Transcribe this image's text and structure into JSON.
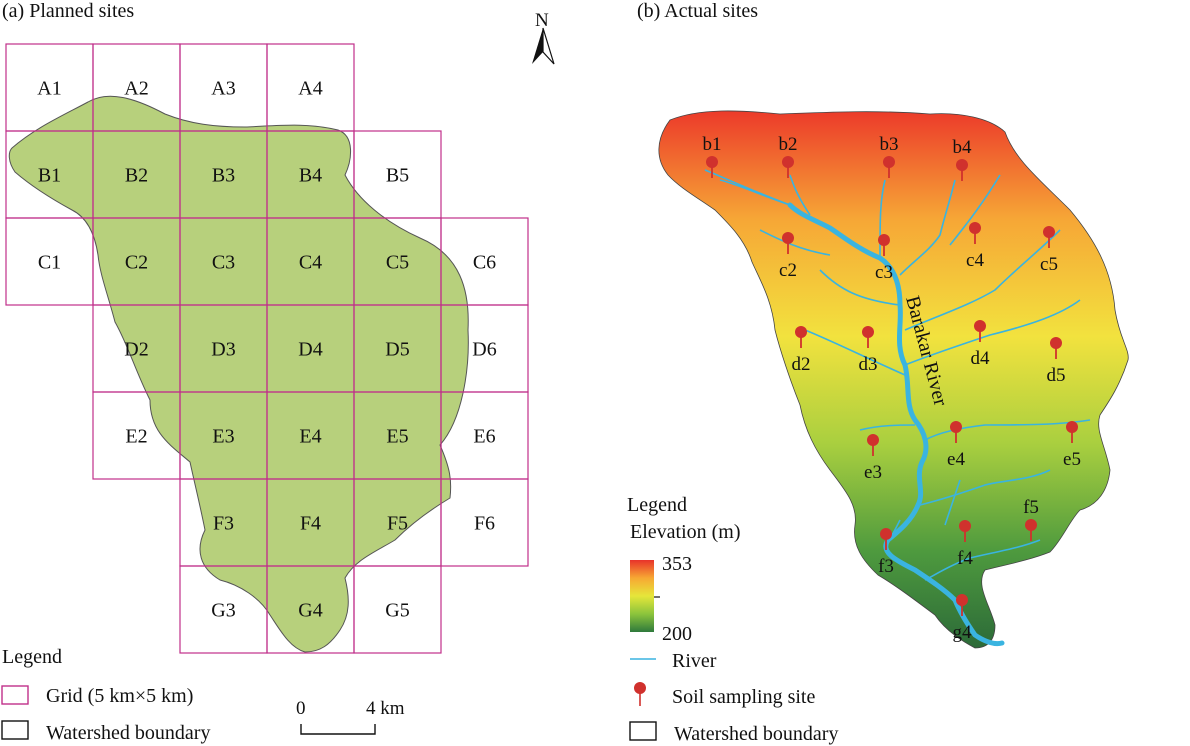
{
  "panel_a": {
    "title": "(a) Planned sites",
    "grid_cells": [
      {
        "label": "A1",
        "row": 0,
        "col": 0
      },
      {
        "label": "A2",
        "row": 0,
        "col": 1
      },
      {
        "label": "A3",
        "row": 0,
        "col": 2
      },
      {
        "label": "A4",
        "row": 0,
        "col": 3
      },
      {
        "label": "B1",
        "row": 1,
        "col": 0
      },
      {
        "label": "B2",
        "row": 1,
        "col": 1
      },
      {
        "label": "B3",
        "row": 1,
        "col": 2
      },
      {
        "label": "B4",
        "row": 1,
        "col": 3
      },
      {
        "label": "B5",
        "row": 1,
        "col": 4
      },
      {
        "label": "C1",
        "row": 2,
        "col": 0
      },
      {
        "label": "C2",
        "row": 2,
        "col": 1
      },
      {
        "label": "C3",
        "row": 2,
        "col": 2
      },
      {
        "label": "C4",
        "row": 2,
        "col": 3
      },
      {
        "label": "C5",
        "row": 2,
        "col": 4
      },
      {
        "label": "C6",
        "row": 2,
        "col": 5
      },
      {
        "label": "D2",
        "row": 3,
        "col": 1
      },
      {
        "label": "D3",
        "row": 3,
        "col": 2
      },
      {
        "label": "D4",
        "row": 3,
        "col": 3
      },
      {
        "label": "D5",
        "row": 3,
        "col": 4
      },
      {
        "label": "D6",
        "row": 3,
        "col": 5
      },
      {
        "label": "E2",
        "row": 4,
        "col": 1
      },
      {
        "label": "E3",
        "row": 4,
        "col": 2
      },
      {
        "label": "E4",
        "row": 4,
        "col": 3
      },
      {
        "label": "E5",
        "row": 4,
        "col": 4
      },
      {
        "label": "E6",
        "row": 4,
        "col": 5
      },
      {
        "label": "F3",
        "row": 5,
        "col": 2
      },
      {
        "label": "F4",
        "row": 5,
        "col": 3
      },
      {
        "label": "F5",
        "row": 5,
        "col": 4
      },
      {
        "label": "F6",
        "row": 5,
        "col": 5
      },
      {
        "label": "G3",
        "row": 6,
        "col": 2
      },
      {
        "label": "G4",
        "row": 6,
        "col": 3
      },
      {
        "label": "G5",
        "row": 6,
        "col": 4
      }
    ],
    "legend": {
      "title": "Legend",
      "grid_label": "Grid (5 km×5 km)",
      "boundary_label": "Watershed boundary"
    },
    "scale_bar": {
      "start": "0",
      "end": "4 km"
    },
    "grid_color": "#c0308a",
    "watershed_fill": "#b7d07c"
  },
  "north_arrow": {
    "label": "N"
  },
  "panel_b": {
    "title": "(b) Actual sites",
    "river_name": "Barakar River",
    "river_color": "#3ab4e0",
    "marker_color": "#d0312d",
    "sites": [
      "b1",
      "b2",
      "b3",
      "b4",
      "c2",
      "c3",
      "c4",
      "c5",
      "d2",
      "d3",
      "d4",
      "d5",
      "e3",
      "e4",
      "e5",
      "f3",
      "f4",
      "f5",
      "g4"
    ],
    "legend": {
      "title": "Legend",
      "elevation_title": "Elevation (m)",
      "elevation_max": "353",
      "elevation_min": "200",
      "elevation_colors": [
        "#e8332a",
        "#f7a833",
        "#e6e63a",
        "#8cc43c",
        "#2f7a3c"
      ],
      "river_label": "River",
      "site_label": "Soil sampling site",
      "boundary_label": "Watershed boundary"
    }
  }
}
